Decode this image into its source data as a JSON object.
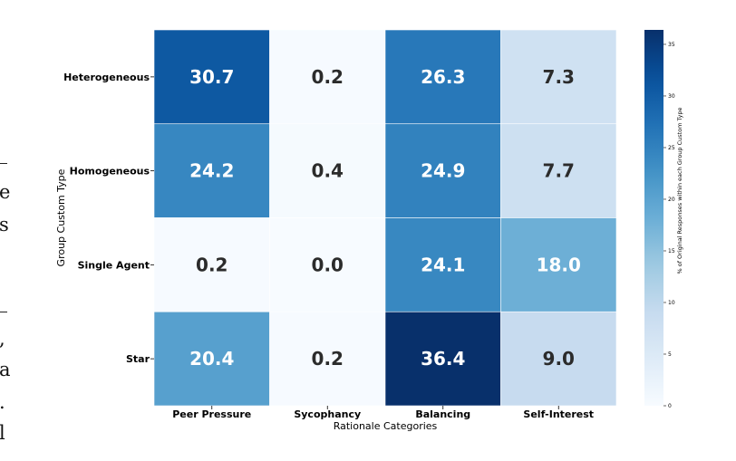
{
  "chart_data": {
    "type": "heatmap",
    "title": "",
    "xlabel": "Rationale Categories",
    "ylabel": "Group Custom Type",
    "x_categories": [
      "Peer Pressure",
      "Sycophancy",
      "Balancing",
      "Self-Interest"
    ],
    "y_categories": [
      "Heterogeneous",
      "Homogeneous",
      "Single Agent",
      "Star"
    ],
    "values": [
      [
        30.7,
        0.2,
        26.3,
        7.3
      ],
      [
        24.2,
        0.4,
        24.9,
        7.7
      ],
      [
        0.2,
        0.0,
        24.1,
        18.0
      ],
      [
        20.4,
        0.2,
        36.4,
        9.0
      ]
    ],
    "colormap": "Blues",
    "vmin": 0,
    "vmax": 36.4,
    "colorbar": {
      "label": "% of Original Responses within each Group Custom Type",
      "ticks": [
        0,
        5,
        10,
        15,
        20,
        25,
        30,
        35
      ]
    }
  },
  "page_fragment": {
    "margin_text": [
      "e",
      "s",
      ",",
      "a",
      ".",
      "l"
    ]
  }
}
